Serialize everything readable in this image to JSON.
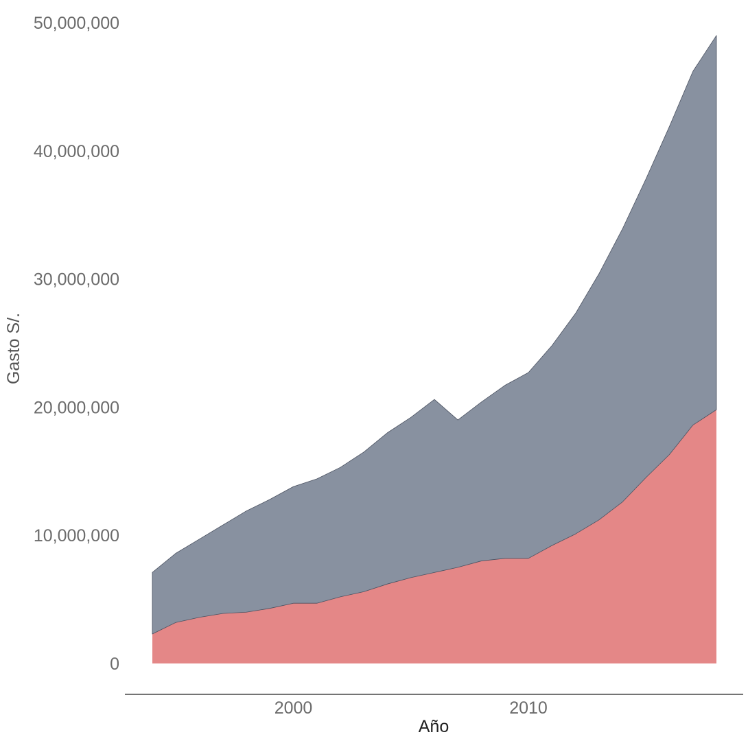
{
  "chart_data": {
    "type": "area",
    "stacked": true,
    "title": "",
    "xlabel": "Año",
    "ylabel": "Gasto S/.",
    "xlim": [
      1994,
      2018
    ],
    "ylim": [
      0,
      50000000
    ],
    "x_ticks": [
      2000,
      2010
    ],
    "y_ticks": [
      0,
      10000000,
      20000000,
      30000000,
      40000000,
      50000000
    ],
    "y_tick_labels": [
      "0",
      "10,000,000",
      "20,000,000",
      "30,000,000",
      "40,000,000",
      "50,000,000"
    ],
    "grid": false,
    "legend": "none",
    "x": [
      1994,
      1995,
      1996,
      1997,
      1998,
      1999,
      2000,
      2001,
      2002,
      2003,
      2004,
      2005,
      2006,
      2007,
      2008,
      2009,
      2010,
      2011,
      2012,
      2013,
      2014,
      2015,
      2016,
      2017,
      2018
    ],
    "series": [
      {
        "color": "#e48787",
        "values": [
          2300000,
          3200000,
          3600000,
          3900000,
          4000000,
          4300000,
          4700000,
          4700000,
          5200000,
          5600000,
          6200000,
          6700000,
          7100000,
          7500000,
          8000000,
          8200000,
          8200000,
          9200000,
          10100000,
          11200000,
          12600000,
          14500000,
          16300000,
          18600000,
          19800000
        ]
      },
      {
        "color": "#8891a0",
        "values": [
          4800000,
          5400000,
          6100000,
          6900000,
          7900000,
          8500000,
          9100000,
          9700000,
          10100000,
          10900000,
          11800000,
          12500000,
          13500000,
          11500000,
          12400000,
          13500000,
          14500000,
          15600000,
          17200000,
          19200000,
          21300000,
          23300000,
          25600000,
          27600000,
          29200000
        ]
      }
    ]
  }
}
